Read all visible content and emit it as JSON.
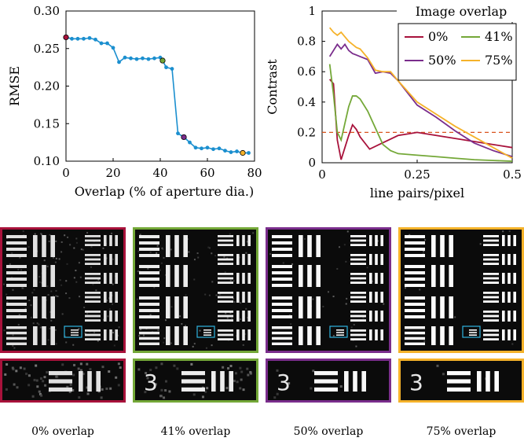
{
  "chart_data": [
    {
      "type": "line",
      "xlabel": "Overlap (% of aperture dia.)",
      "ylabel": "RMSE",
      "xlim": [
        0,
        80
      ],
      "ylim": [
        0.1,
        0.3
      ],
      "xticks": [
        "0",
        "20",
        "40",
        "60",
        "80"
      ],
      "yticks": [
        "0.10",
        "0.15",
        "0.20",
        "0.25",
        "0.30"
      ],
      "series": [
        {
          "color": "#1b8fcf",
          "x": [
            0,
            2.5,
            5,
            7.5,
            10,
            12.5,
            15,
            17.5,
            20,
            22.5,
            25,
            27.5,
            30,
            32.5,
            35,
            37.5,
            40,
            41,
            42.5,
            45,
            47.5,
            50,
            52.5,
            55,
            57.5,
            60,
            62.5,
            65,
            67.5,
            70,
            72.5,
            75,
            77.5
          ],
          "y": [
            0.265,
            0.263,
            0.263,
            0.263,
            0.264,
            0.262,
            0.257,
            0.257,
            0.251,
            0.232,
            0.238,
            0.237,
            0.236,
            0.237,
            0.236,
            0.237,
            0.238,
            0.234,
            0.225,
            0.223,
            0.137,
            0.132,
            0.125,
            0.118,
            0.117,
            0.118,
            0.116,
            0.117,
            0.114,
            0.112,
            0.113,
            0.111,
            0.111
          ]
        }
      ],
      "highlight_points": [
        {
          "x": 0,
          "y": 0.265,
          "color": "#a8123b"
        },
        {
          "x": 41,
          "y": 0.234,
          "color": "#74a838"
        },
        {
          "x": 50,
          "y": 0.132,
          "color": "#7a2d8c"
        },
        {
          "x": 75,
          "y": 0.111,
          "color": "#f5b22a"
        }
      ]
    },
    {
      "type": "line",
      "xlabel": "line pairs/pixel",
      "ylabel": "Contrast",
      "xlim": [
        0,
        0.5
      ],
      "ylim": [
        0,
        1
      ],
      "xticks": [
        "0",
        "0.25",
        "0.5"
      ],
      "yticks": [
        "0",
        "0.2",
        "0.4",
        "0.6",
        "0.8",
        "1"
      ],
      "legend_title": "Image overlap",
      "legend_position": "top-right",
      "threshold": {
        "y": 0.2,
        "color": "#d9541e",
        "style": "dashed"
      },
      "series": [
        {
          "name": "0%",
          "color": "#a8123b",
          "x": [
            0.02,
            0.03,
            0.04,
            0.05,
            0.06,
            0.07,
            0.08,
            0.09,
            0.1,
            0.125,
            0.15,
            0.175,
            0.2,
            0.225,
            0.25,
            0.3,
            0.35,
            0.4,
            0.45,
            0.5
          ],
          "y": [
            0.55,
            0.52,
            0.15,
            0.02,
            0.1,
            0.18,
            0.25,
            0.22,
            0.17,
            0.09,
            0.12,
            0.15,
            0.18,
            0.19,
            0.2,
            0.18,
            0.16,
            0.14,
            0.12,
            0.1
          ]
        },
        {
          "name": "41%",
          "color": "#74a838",
          "x": [
            0.02,
            0.03,
            0.04,
            0.05,
            0.06,
            0.07,
            0.08,
            0.09,
            0.1,
            0.12,
            0.14,
            0.16,
            0.18,
            0.2,
            0.25,
            0.3,
            0.35,
            0.4,
            0.45,
            0.5
          ],
          "y": [
            0.65,
            0.45,
            0.2,
            0.15,
            0.26,
            0.37,
            0.44,
            0.44,
            0.42,
            0.34,
            0.23,
            0.12,
            0.08,
            0.06,
            0.05,
            0.04,
            0.03,
            0.02,
            0.015,
            0.01
          ]
        },
        {
          "name": "50%",
          "color": "#7a2d8c",
          "x": [
            0.02,
            0.03,
            0.04,
            0.05,
            0.06,
            0.07,
            0.08,
            0.09,
            0.1,
            0.12,
            0.14,
            0.16,
            0.18,
            0.2,
            0.25,
            0.3,
            0.35,
            0.4,
            0.45,
            0.5
          ],
          "y": [
            0.7,
            0.74,
            0.78,
            0.75,
            0.78,
            0.74,
            0.72,
            0.71,
            0.7,
            0.68,
            0.59,
            0.6,
            0.59,
            0.54,
            0.38,
            0.3,
            0.21,
            0.13,
            0.08,
            0.04
          ]
        },
        {
          "name": "75%",
          "color": "#f5b22a",
          "x": [
            0.02,
            0.03,
            0.04,
            0.05,
            0.06,
            0.07,
            0.08,
            0.09,
            0.1,
            0.12,
            0.14,
            0.16,
            0.18,
            0.2,
            0.25,
            0.3,
            0.35,
            0.4,
            0.45,
            0.5
          ],
          "y": [
            0.89,
            0.86,
            0.84,
            0.86,
            0.83,
            0.8,
            0.78,
            0.76,
            0.75,
            0.69,
            0.61,
            0.6,
            0.6,
            0.54,
            0.4,
            0.32,
            0.24,
            0.17,
            0.1,
            0.03
          ]
        }
      ]
    }
  ],
  "panels": [
    {
      "caption": "0% overlap",
      "color": "#a8123b",
      "noise": 0.55,
      "gap_noise": 0.45
    },
    {
      "caption": "41% overlap",
      "color": "#74a838",
      "noise": 0.35,
      "gap_noise": 0.3
    },
    {
      "caption": "50% overlap",
      "color": "#7a2d8c",
      "noise": 0.12,
      "gap_noise": 0.06
    },
    {
      "caption": "75% overlap",
      "color": "#f5b22a",
      "noise": 0.05,
      "gap_noise": 0.02
    }
  ]
}
